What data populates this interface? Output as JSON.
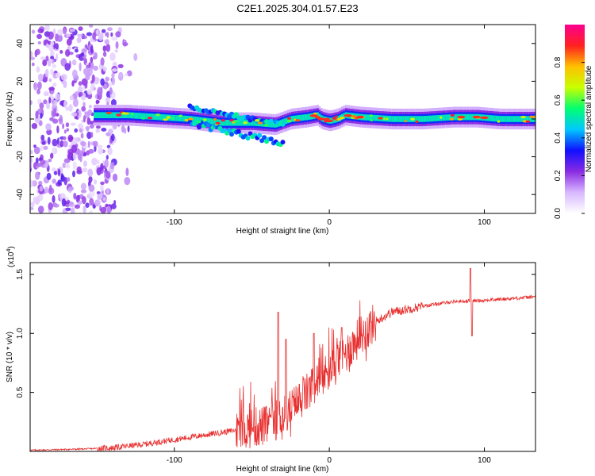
{
  "title": "C2E1.2025.304.01.57.E23",
  "chart_data": [
    {
      "type": "heatmap",
      "name": "spectrogram",
      "xlabel": "Height of straight line (km)",
      "ylabel": "Frequency (Hz)",
      "xlim": [
        -193,
        133
      ],
      "ylim": [
        -50,
        50
      ],
      "x_ticks": [
        -100,
        0,
        100
      ],
      "y_ticks": [
        -40,
        -20,
        0,
        20,
        40
      ],
      "colorbar": {
        "label": "Normalized spectral amplitude",
        "range": [
          0,
          1
        ],
        "ticks": [
          "0.0",
          "0.2",
          "0.4",
          "0.6",
          "0.8"
        ],
        "colors": [
          "#ffffff",
          "#d8b8ff",
          "#8a2be2",
          "#1010ff",
          "#00c8ff",
          "#00ff70",
          "#c8ff00",
          "#ffc000",
          "#ff2020",
          "#ff0090"
        ]
      },
      "ridge": {
        "description_values": "dominant frequency (Hz) vs height (km)",
        "x": [
          -150,
          -130,
          -110,
          -90,
          -70,
          -50,
          -35,
          -25,
          -15,
          -8,
          -5,
          0,
          5,
          10,
          20,
          40,
          60,
          80,
          95,
          110,
          133
        ],
        "y": [
          2,
          2,
          1,
          0,
          -2,
          -2,
          -3,
          0,
          1,
          2,
          0,
          -1,
          0,
          2,
          1,
          0,
          0,
          1,
          1,
          0,
          0
        ]
      }
    },
    {
      "type": "line",
      "name": "snr",
      "xlabel": "Height of straight line (km)",
      "ylabel": "SNR (10 * v/v)",
      "multiplier": "(x10",
      "multiplier_exp": "4",
      "xlim": [
        -193,
        133
      ],
      "ylim": [
        0,
        1.6
      ],
      "x_ticks": [
        -100,
        0,
        100
      ],
      "y_ticks": [
        "0.5",
        "1.0",
        "1.5"
      ],
      "color": "#e83030",
      "trend": {
        "x": [
          -193,
          -160,
          -140,
          -120,
          -100,
          -80,
          -60,
          -40,
          -30,
          -20,
          -10,
          0,
          10,
          20,
          30,
          40,
          60,
          80,
          100,
          133
        ],
        "y": [
          0.01,
          0.02,
          0.03,
          0.06,
          0.1,
          0.14,
          0.18,
          0.22,
          0.3,
          0.42,
          0.55,
          0.68,
          0.82,
          0.98,
          1.1,
          1.18,
          1.23,
          1.27,
          1.28,
          1.31
        ]
      },
      "spikes": [
        {
          "x": -33,
          "y": 1.18
        },
        {
          "x": -28,
          "y": 0.95
        },
        {
          "x": -10,
          "y": 1.0
        },
        {
          "x": 8,
          "y": 1.05
        },
        {
          "x": 91,
          "y": 1.55
        },
        {
          "x": 92,
          "y": 0.98
        }
      ]
    }
  ]
}
